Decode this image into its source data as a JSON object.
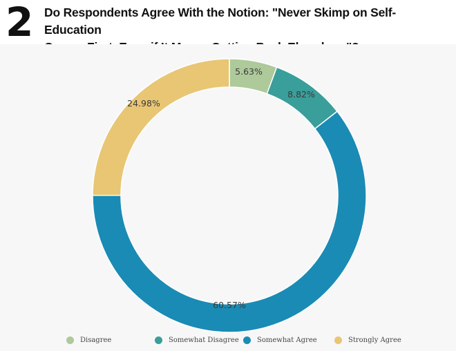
{
  "figure": {
    "number": "2",
    "title_line1": "Do Respondents Agree With the Notion: \"Never Skimp on Self-Education",
    "title_line2": "Comes First, Even if It Means Cutting Back Elsewhere\"?"
  },
  "chart_data": {
    "type": "pie",
    "style": "donut",
    "title": "Do Respondents Agree With the Notion: \"Never Skimp on Self-Education Comes First, Even if It Means Cutting Back Elsewhere\"?",
    "legend_position": "bottom",
    "slices": [
      {
        "name": "Disagree",
        "value": 5.63,
        "label": "5.63%",
        "color": "#aec99a"
      },
      {
        "name": "Somewhat Disagree",
        "value": 8.82,
        "label": "8.82%",
        "color": "#3a9e9a"
      },
      {
        "name": "Somewhat Agree",
        "value": 60.57,
        "label": "60.57%",
        "color": "#1a8bb4"
      },
      {
        "name": "Strongly Agree",
        "value": 24.98,
        "label": "24.98%",
        "color": "#e8c674"
      }
    ]
  }
}
